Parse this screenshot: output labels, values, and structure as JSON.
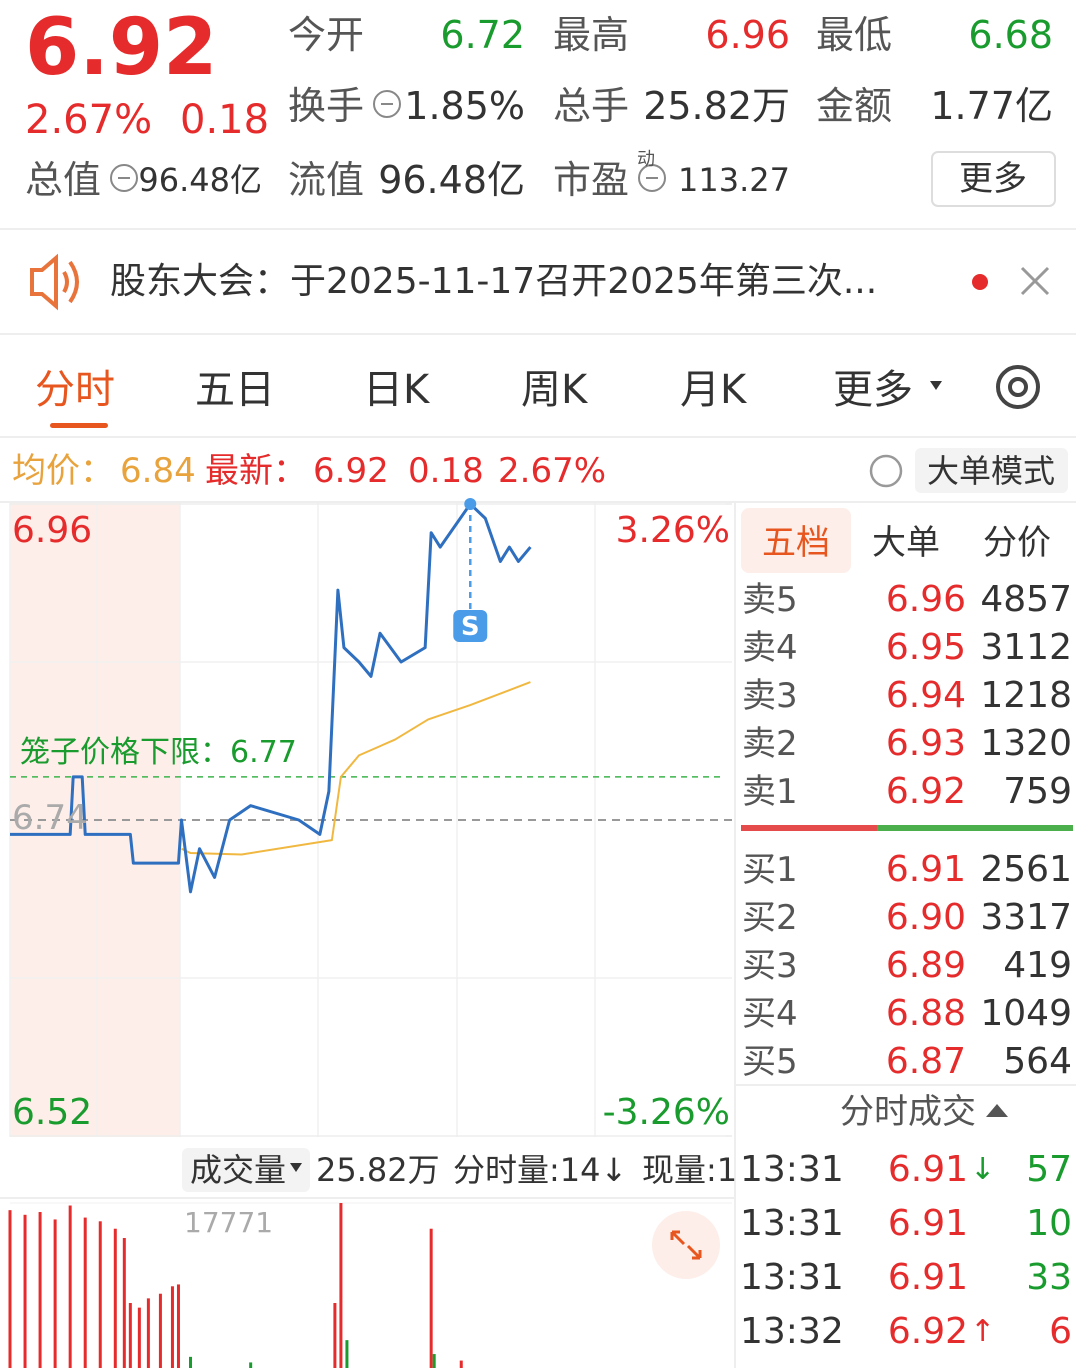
{
  "quote": {
    "price": "6.92",
    "change_pct": "2.67%",
    "change": "0.18",
    "stats": [
      [
        {
          "label": "今开",
          "value": "6.72"
        },
        {
          "label": "最高",
          "value": "6.96"
        },
        {
          "label": "最低",
          "value": "6.68"
        }
      ],
      [
        {
          "label": "换手",
          "value": "1.85%"
        },
        {
          "label": "总手",
          "value": "25.82万"
        },
        {
          "label": "金额",
          "value": "1.77亿"
        }
      ],
      [
        {
          "label": "总值",
          "value": "96.48亿"
        },
        {
          "label": "流值",
          "value": "96.48亿"
        },
        {
          "label": "市盈",
          "tag": "动",
          "value": "113.27"
        }
      ]
    ],
    "more_button": "更多"
  },
  "notice": "股东大会：于2025-11-17召开2025年第三次...",
  "tabs": [
    "分时",
    "五日",
    "日K",
    "周K",
    "月K",
    "更多"
  ],
  "info_bar": {
    "avg_label": "均价：",
    "avg": "6.84",
    "last_label": "最新：",
    "last": "6.92",
    "change": "0.18",
    "change_pct": "2.67%",
    "mode_button": "大单模式"
  },
  "chart_data": [
    {
      "type": "line",
      "xlim": [
        0,
        240
      ],
      "ylim": [
        6.52,
        6.96
      ],
      "yticks": [
        6.52,
        6.96
      ],
      "y2lim": [
        -3.26,
        3.26
      ],
      "y2ticks": [
        {
          "value": -3.26,
          "label": "-3.26%"
        },
        {
          "value": 3.26,
          "label": "3.26%"
        }
      ],
      "reference": {
        "value": 6.74,
        "label": "6.74"
      },
      "cage_limit": {
        "value": 6.77,
        "label": "笼子价格下限：6.77"
      },
      "signal": {
        "label": "S",
        "x": 153,
        "value": 6.96
      },
      "series": [
        {
          "color": "#2f6fc0",
          "x": [
            0,
            20,
            21,
            24,
            25,
            40,
            41,
            56,
            57,
            60,
            63,
            68,
            73,
            80,
            96,
            103,
            106,
            109,
            111,
            116,
            120,
            123,
            130,
            138,
            140,
            143,
            153,
            158,
            163,
            166,
            169,
            173
          ],
          "values": [
            6.73,
            6.73,
            6.77,
            6.77,
            6.73,
            6.73,
            6.71,
            6.71,
            6.74,
            6.69,
            6.72,
            6.7,
            6.74,
            6.75,
            6.74,
            6.73,
            6.76,
            6.9,
            6.86,
            6.85,
            6.84,
            6.87,
            6.85,
            6.86,
            6.94,
            6.93,
            6.96,
            6.95,
            6.92,
            6.93,
            6.92,
            6.93
          ]
        },
        {
          "color": "#f0b840",
          "x": [
            57,
            60,
            77,
            107,
            110,
            116,
            128,
            139,
            153,
            173
          ],
          "values": [
            6.72,
            6.717,
            6.716,
            6.726,
            6.77,
            6.785,
            6.796,
            6.81,
            6.82,
            6.836
          ]
        }
      ]
    },
    {
      "type": "bar",
      "header": {
        "selector": "成交量",
        "total": "25.82万",
        "period_volume": "分时量:14↓",
        "current_volume": "现量:1"
      },
      "xlim": [
        0,
        240
      ],
      "ylim": [
        0,
        17771
      ],
      "yticks": [
        17771
      ],
      "x": [
        0,
        5,
        10,
        15,
        20,
        25,
        30,
        35,
        38,
        40,
        43,
        46,
        50,
        54,
        56,
        60,
        80,
        108,
        110,
        112,
        140,
        141,
        150
      ],
      "values": [
        17000,
        16500,
        16800,
        16000,
        17500,
        16200,
        15800,
        15000,
        14000,
        7000,
        6500,
        7500,
        8000,
        8800,
        9000,
        1200,
        600,
        7000,
        17771,
        3000,
        15000,
        1500,
        800
      ],
      "colors": [
        "#e52b2b",
        "#e52b2b",
        "#e52b2b",
        "#e52b2b",
        "#e52b2b",
        "#e52b2b",
        "#e52b2b",
        "#e52b2b",
        "#e52b2b",
        "#e52b2b",
        "#e52b2b",
        "#e52b2b",
        "#e52b2b",
        "#e52b2b",
        "#e52b2b",
        "#1a9b2e",
        "#1a9b2e",
        "#e52b2b",
        "#e52b2b",
        "#1a9b2e",
        "#e52b2b",
        "#1a9b2e",
        "#e52b2b"
      ]
    }
  ],
  "order_book": {
    "tabs": [
      "五档",
      "大单",
      "分价"
    ],
    "asks": [
      {
        "label": "卖5",
        "price": "6.96",
        "volume": "4857"
      },
      {
        "label": "卖4",
        "price": "6.95",
        "volume": "3112"
      },
      {
        "label": "卖3",
        "price": "6.94",
        "volume": "1218"
      },
      {
        "label": "卖2",
        "price": "6.93",
        "volume": "1320"
      },
      {
        "label": "卖1",
        "price": "6.92",
        "volume": "759"
      }
    ],
    "bids": [
      {
        "label": "买1",
        "price": "6.91",
        "volume": "2561"
      },
      {
        "label": "买2",
        "price": "6.90",
        "volume": "3317"
      },
      {
        "label": "买3",
        "price": "6.89",
        "volume": "419"
      },
      {
        "label": "买4",
        "price": "6.88",
        "volume": "1049"
      },
      {
        "label": "买5",
        "price": "6.87",
        "volume": "564"
      }
    ]
  },
  "trades": {
    "title": "分时成交",
    "rows": [
      {
        "time": "13:31",
        "price": "6.91",
        "arrow": "↓",
        "volume": "57",
        "color": "#1a9b2e"
      },
      {
        "time": "13:31",
        "price": "6.91",
        "volume": "10",
        "color": "#1a9b2e"
      },
      {
        "time": "13:31",
        "price": "6.91",
        "volume": "33",
        "color": "#1a9b2e"
      },
      {
        "time": "13:32",
        "price": "6.92",
        "arrow": "↑",
        "volume": "6",
        "color": "#e52b2b"
      }
    ]
  }
}
